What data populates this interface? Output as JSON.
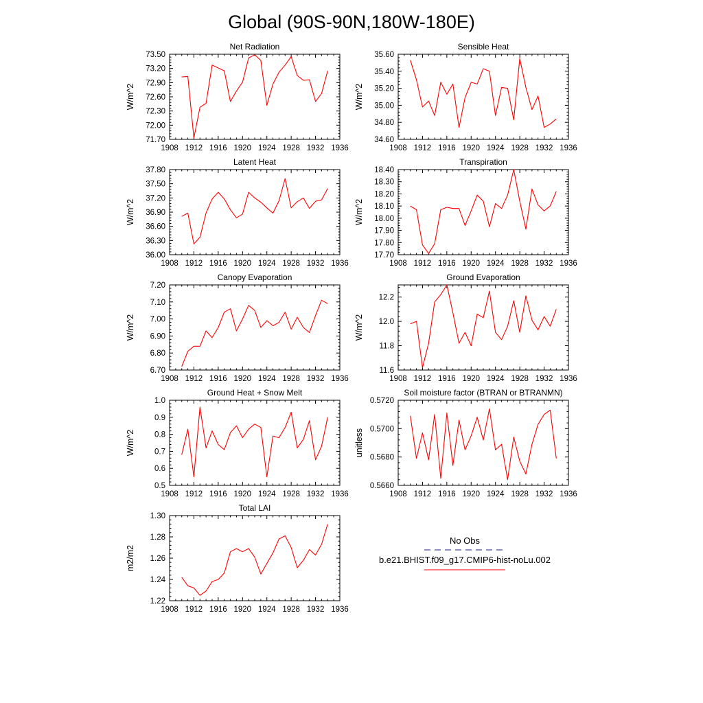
{
  "figure": {
    "title": "Global (90S-90N,180W-180E)"
  },
  "legend": {
    "obs_label": "No Obs",
    "obs_color": "#4a4a9a",
    "model_label": "b.e21.BHIST.f09_g17.CMIP6-hist-noLu.002",
    "model_color": "#ff0000"
  },
  "chart_data": [
    {
      "type": "line",
      "title": "Net Radiation",
      "ylabel": "W/m^2",
      "xlim": [
        1908,
        1936
      ],
      "xticks": [
        "1908",
        "1912",
        "1916",
        "1920",
        "1924",
        "1928",
        "1932",
        "1936"
      ],
      "ylim": [
        71.7,
        73.5
      ],
      "yticks": [
        "71.70",
        "72.00",
        "72.30",
        "72.60",
        "72.90",
        "73.20",
        "73.50"
      ],
      "series": [
        {
          "x": [
            1910,
            1911,
            1912,
            1913,
            1914,
            1915,
            1916,
            1917,
            1918,
            1919,
            1920,
            1921,
            1922,
            1923,
            1924,
            1925,
            1926,
            1927,
            1928,
            1929,
            1930,
            1931,
            1932,
            1933,
            1934
          ],
          "values": [
            73.02,
            73.03,
            71.73,
            72.38,
            72.46,
            73.27,
            73.21,
            73.15,
            72.5,
            72.72,
            72.91,
            73.42,
            73.49,
            73.37,
            72.42,
            72.87,
            73.12,
            73.27,
            73.45,
            73.05,
            72.95,
            72.96,
            72.5,
            72.67,
            73.15
          ]
        }
      ]
    },
    {
      "type": "line",
      "title": "Sensible Heat",
      "ylabel": "W/m^2",
      "xlim": [
        1908,
        1936
      ],
      "xticks": [
        "1908",
        "1912",
        "1916",
        "1920",
        "1924",
        "1928",
        "1932",
        "1936"
      ],
      "ylim": [
        34.6,
        35.6
      ],
      "yticks": [
        "34.60",
        "34.80",
        "35.00",
        "35.20",
        "35.40",
        "35.60"
      ],
      "series": [
        {
          "x": [
            1910,
            1911,
            1912,
            1913,
            1914,
            1915,
            1916,
            1917,
            1918,
            1919,
            1920,
            1921,
            1922,
            1923,
            1924,
            1925,
            1926,
            1927,
            1928,
            1929,
            1930,
            1931,
            1932,
            1933,
            1934
          ],
          "values": [
            35.53,
            35.3,
            34.98,
            35.05,
            34.88,
            35.27,
            35.13,
            35.25,
            34.74,
            35.09,
            35.27,
            35.25,
            35.43,
            35.4,
            34.88,
            35.21,
            35.2,
            34.83,
            35.55,
            35.21,
            34.95,
            35.11,
            34.74,
            34.78,
            34.84
          ]
        }
      ]
    },
    {
      "type": "line",
      "title": "Latent Heat",
      "ylabel": "W/m^2",
      "xlim": [
        1908,
        1936
      ],
      "xticks": [
        "1908",
        "1912",
        "1916",
        "1920",
        "1924",
        "1928",
        "1932",
        "1936"
      ],
      "ylim": [
        36.0,
        37.8
      ],
      "yticks": [
        "36.00",
        "36.30",
        "36.60",
        "36.90",
        "37.20",
        "37.50",
        "37.80"
      ],
      "series": [
        {
          "x": [
            1910,
            1911,
            1912,
            1913,
            1914,
            1915,
            1916,
            1917,
            1918,
            1919,
            1920,
            1921,
            1922,
            1923,
            1924,
            1925,
            1926,
            1927,
            1928,
            1929,
            1930,
            1931,
            1932,
            1933,
            1934
          ],
          "values": [
            36.81,
            36.88,
            36.23,
            36.37,
            36.88,
            37.18,
            37.32,
            37.18,
            36.95,
            36.78,
            36.86,
            37.32,
            37.2,
            37.11,
            36.99,
            36.88,
            37.14,
            37.61,
            36.99,
            37.12,
            37.2,
            36.98,
            37.13,
            37.16,
            37.4
          ]
        }
      ]
    },
    {
      "type": "line",
      "title": "Transpiration",
      "ylabel": "W/m^2",
      "xlim": [
        1908,
        1936
      ],
      "xticks": [
        "1908",
        "1912",
        "1916",
        "1920",
        "1924",
        "1928",
        "1932",
        "1936"
      ],
      "ylim": [
        17.7,
        18.4
      ],
      "yticks": [
        "17.70",
        "17.80",
        "17.90",
        "18.00",
        "18.10",
        "18.20",
        "18.30",
        "18.40"
      ],
      "series": [
        {
          "x": [
            1910,
            1911,
            1912,
            1913,
            1914,
            1915,
            1916,
            1917,
            1918,
            1919,
            1920,
            1921,
            1922,
            1923,
            1924,
            1925,
            1926,
            1927,
            1928,
            1929,
            1930,
            1931,
            1932,
            1933,
            1934
          ],
          "values": [
            18.1,
            18.07,
            17.78,
            17.71,
            17.79,
            18.07,
            18.09,
            18.08,
            18.08,
            17.94,
            18.06,
            18.19,
            18.14,
            17.93,
            18.12,
            18.08,
            18.19,
            18.4,
            18.14,
            17.91,
            18.24,
            18.11,
            18.06,
            18.1,
            18.22
          ]
        }
      ]
    },
    {
      "type": "line",
      "title": "Canopy Evaporation",
      "ylabel": "W/m^2",
      "xlim": [
        1908,
        1936
      ],
      "xticks": [
        "1908",
        "1912",
        "1916",
        "1920",
        "1924",
        "1928",
        "1932",
        "1936"
      ],
      "ylim": [
        6.7,
        7.2
      ],
      "yticks": [
        "6.70",
        "6.80",
        "6.90",
        "7.00",
        "7.10",
        "7.20"
      ],
      "series": [
        {
          "x": [
            1910,
            1911,
            1912,
            1913,
            1914,
            1915,
            1916,
            1917,
            1918,
            1919,
            1920,
            1921,
            1922,
            1923,
            1924,
            1925,
            1926,
            1927,
            1928,
            1929,
            1930,
            1931,
            1932,
            1933,
            1934
          ],
          "values": [
            6.72,
            6.81,
            6.84,
            6.84,
            6.93,
            6.89,
            6.95,
            7.04,
            7.06,
            6.93,
            7.0,
            7.08,
            7.05,
            6.95,
            6.99,
            6.96,
            6.98,
            7.04,
            6.94,
            7.01,
            6.95,
            6.92,
            7.02,
            7.11,
            7.09
          ]
        }
      ]
    },
    {
      "type": "line",
      "title": "Ground Evaporation",
      "ylabel": "W/m^2",
      "xlim": [
        1908,
        1936
      ],
      "xticks": [
        "1908",
        "1912",
        "1916",
        "1920",
        "1924",
        "1928",
        "1932",
        "1936"
      ],
      "ylim": [
        11.6,
        12.3
      ],
      "yticks": [
        "11.6",
        "11.8",
        "12.0",
        "12.2"
      ],
      "series": [
        {
          "x": [
            1910,
            1911,
            1912,
            1913,
            1914,
            1915,
            1916,
            1917,
            1918,
            1919,
            1920,
            1921,
            1922,
            1923,
            1924,
            1925,
            1926,
            1927,
            1928,
            1929,
            1930,
            1931,
            1932,
            1933,
            1934
          ],
          "values": [
            11.98,
            12.0,
            11.62,
            11.82,
            12.16,
            12.22,
            12.3,
            12.07,
            11.82,
            11.91,
            11.8,
            12.06,
            12.03,
            12.25,
            11.91,
            11.85,
            11.96,
            12.17,
            11.91,
            12.21,
            12.01,
            11.93,
            12.04,
            11.96,
            12.1
          ]
        }
      ]
    },
    {
      "type": "line",
      "title": "Ground Heat + Snow Melt",
      "ylabel": "W/m^2",
      "xlim": [
        1908,
        1936
      ],
      "xticks": [
        "1908",
        "1912",
        "1916",
        "1920",
        "1924",
        "1928",
        "1932",
        "1936"
      ],
      "ylim": [
        0.5,
        1.0
      ],
      "yticks": [
        "0.5",
        "0.6",
        "0.7",
        "0.8",
        "0.9",
        "1.0"
      ],
      "series": [
        {
          "x": [
            1910,
            1911,
            1912,
            1913,
            1914,
            1915,
            1916,
            1917,
            1918,
            1919,
            1920,
            1921,
            1922,
            1923,
            1924,
            1925,
            1926,
            1927,
            1928,
            1929,
            1930,
            1931,
            1932,
            1933,
            1934
          ],
          "values": [
            0.68,
            0.83,
            0.55,
            0.96,
            0.72,
            0.82,
            0.74,
            0.71,
            0.81,
            0.85,
            0.78,
            0.83,
            0.86,
            0.84,
            0.55,
            0.79,
            0.78,
            0.84,
            0.93,
            0.72,
            0.77,
            0.88,
            0.65,
            0.73,
            0.9
          ]
        }
      ]
    },
    {
      "type": "line",
      "title": "Soil moisture factor (BTRAN or BTRANMN)",
      "ylabel": "unitless",
      "xlim": [
        1908,
        1936
      ],
      "xticks": [
        "1908",
        "1912",
        "1916",
        "1920",
        "1924",
        "1928",
        "1932",
        "1936"
      ],
      "ylim": [
        0.566,
        0.572
      ],
      "yticks": [
        "0.5660",
        "0.5680",
        "0.5700",
        "0.5720"
      ],
      "series": [
        {
          "x": [
            1910,
            1911,
            1912,
            1913,
            1914,
            1915,
            1916,
            1917,
            1918,
            1919,
            1920,
            1921,
            1922,
            1923,
            1924,
            1925,
            1926,
            1927,
            1928,
            1929,
            1930,
            1931,
            1932,
            1933,
            1934
          ],
          "values": [
            0.5709,
            0.5679,
            0.5697,
            0.5678,
            0.571,
            0.5665,
            0.5711,
            0.5674,
            0.5706,
            0.5685,
            0.5695,
            0.5708,
            0.5692,
            0.5714,
            0.5685,
            0.5689,
            0.5664,
            0.5694,
            0.5677,
            0.5668,
            0.5689,
            0.5703,
            0.571,
            0.5713,
            0.5679
          ]
        }
      ]
    },
    {
      "type": "line",
      "title": "Total LAI",
      "ylabel": "m2/m2",
      "xlim": [
        1908,
        1936
      ],
      "xticks": [
        "1908",
        "1912",
        "1916",
        "1920",
        "1924",
        "1928",
        "1932",
        "1936"
      ],
      "ylim": [
        1.22,
        1.3
      ],
      "yticks": [
        "1.22",
        "1.24",
        "1.26",
        "1.28",
        "1.30"
      ],
      "series": [
        {
          "x": [
            1910,
            1911,
            1912,
            1913,
            1914,
            1915,
            1916,
            1917,
            1918,
            1919,
            1920,
            1921,
            1922,
            1923,
            1924,
            1925,
            1926,
            1927,
            1928,
            1929,
            1930,
            1931,
            1932,
            1933,
            1934
          ],
          "values": [
            1.242,
            1.234,
            1.232,
            1.225,
            1.229,
            1.238,
            1.24,
            1.246,
            1.266,
            1.269,
            1.266,
            1.269,
            1.261,
            1.245,
            1.255,
            1.265,
            1.278,
            1.281,
            1.27,
            1.251,
            1.258,
            1.268,
            1.263,
            1.273,
            1.292
          ]
        }
      ]
    }
  ]
}
